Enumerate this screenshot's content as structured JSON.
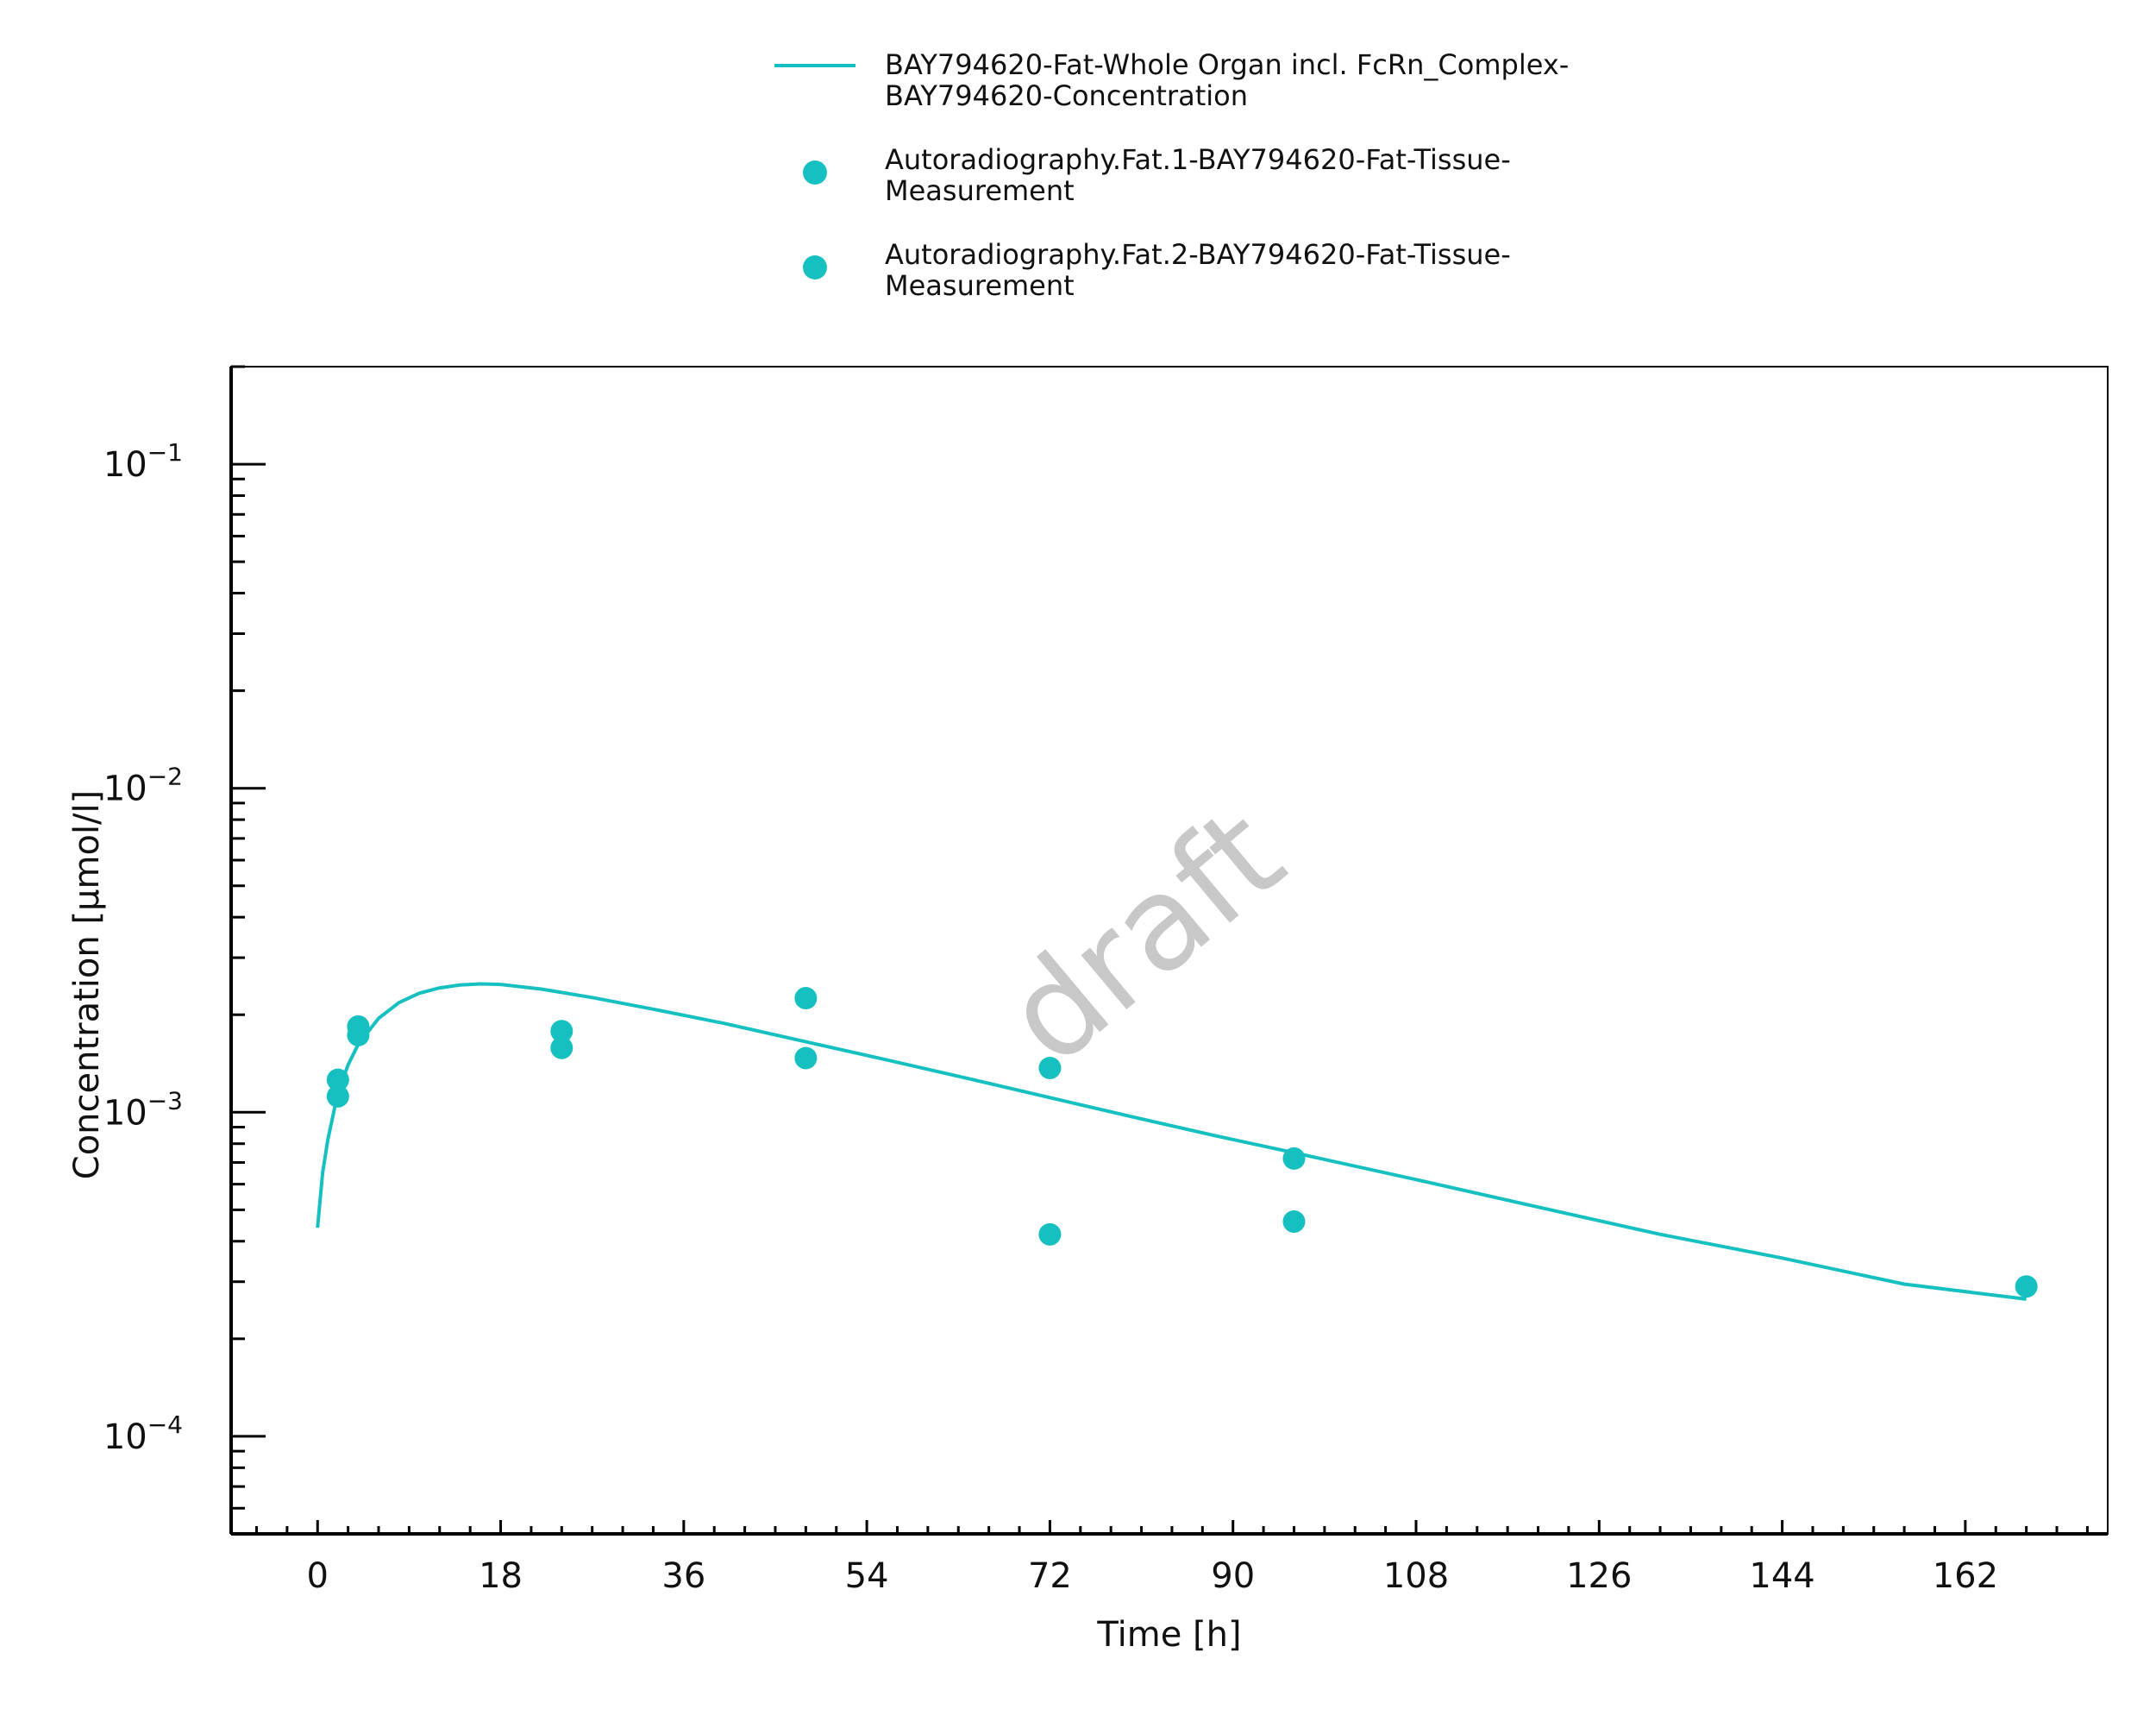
{
  "chart_data": {
    "type": "line",
    "xlabel": "Time [h]",
    "ylabel": "Concentration [µmol/l]",
    "xlim": [
      -8.5,
      176
    ],
    "ylim": [
      5e-05,
      0.2
    ],
    "y_scale": "log",
    "x_ticks": [
      0,
      18,
      36,
      54,
      72,
      90,
      108,
      126,
      144,
      162
    ],
    "y_ticks": [
      {
        "value": 0.1,
        "base": "10",
        "exp": "−1"
      },
      {
        "value": 0.01,
        "base": "10",
        "exp": "−2"
      },
      {
        "value": 0.001,
        "base": "10",
        "exp": "−3"
      },
      {
        "value": 0.0001,
        "base": "10",
        "exp": "−4"
      }
    ],
    "watermark": "draft",
    "legend_position": "top",
    "color": "#16C0C0",
    "series": [
      {
        "name": "BAY794620-Fat-Whole Organ incl. FcRn_Complex-BAY794620-Concentration",
        "legend_lines": [
          "BAY794620-Fat-Whole Organ incl. FcRn_Complex-",
          "BAY794620-Concentration"
        ],
        "kind": "line",
        "x": [
          0,
          0.5,
          1,
          2,
          3,
          4,
          6,
          8,
          10,
          12,
          14,
          16,
          18,
          22,
          27,
          33,
          40,
          48,
          56,
          64,
          72,
          80,
          88,
          96,
          108,
          120,
          132,
          144,
          156,
          168
        ],
        "y": [
          0.00044,
          0.00065,
          0.00082,
          0.00115,
          0.0014,
          0.00162,
          0.00195,
          0.00218,
          0.00233,
          0.00242,
          0.00247,
          0.00249,
          0.00248,
          0.0024,
          0.00226,
          0.00208,
          0.00188,
          0.00165,
          0.00145,
          0.00127,
          0.00111,
          0.00097,
          0.00085,
          0.00075,
          0.00062,
          0.00051,
          0.00042,
          0.000355,
          0.000295,
          0.000265
        ]
      },
      {
        "name": "Autoradiography.Fat.1-BAY794620-Fat-Tissue-Measurement",
        "legend_lines": [
          "Autoradiography.Fat.1-BAY794620-Fat-Tissue-",
          "Measurement"
        ],
        "kind": "scatter",
        "x": [
          2,
          4,
          24,
          48,
          72,
          96,
          168
        ],
        "y": [
          0.00126,
          0.00184,
          0.00178,
          0.00225,
          0.00137,
          0.00072,
          0.00029
        ]
      },
      {
        "name": "Autoradiography.Fat.2-BAY794620-Fat-Tissue-Measurement",
        "legend_lines": [
          "Autoradiography.Fat.2-BAY794620-Fat-Tissue-",
          "Measurement"
        ],
        "kind": "scatter",
        "x": [
          2,
          4,
          24,
          48,
          72,
          96
        ],
        "y": [
          0.00112,
          0.00173,
          0.00158,
          0.00147,
          0.00042,
          0.00046
        ]
      }
    ]
  }
}
